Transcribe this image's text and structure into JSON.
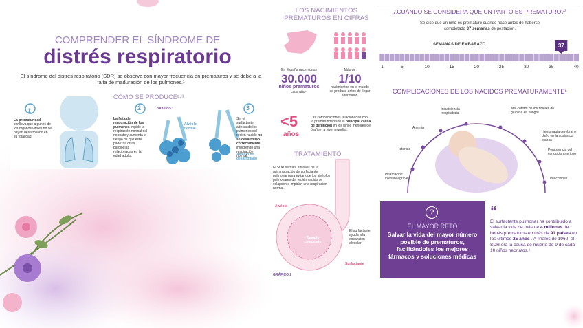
{
  "header": {
    "kicker": "COMPRENDER EL SÍNDROME DE",
    "title": "distrés respiratorio",
    "intro": "El síndrome del distrés respiratorio (SDR) se observa con mayor frecuencia en prematuros y se debe a la falta de maduración de los pulmones.¹"
  },
  "how": {
    "title": "CÓMO SE PRODUCE²·³",
    "graphic": "GRÁFICO 1",
    "steps": [
      {
        "number": "1",
        "parts": [
          "La prematuridad",
          "conlleva que algunos de los órganos vitales no se hayan desarrollado en su totalidad."
        ]
      },
      {
        "number": "2",
        "parts": [
          "La falta de maduración de los pulmones",
          "impide la respiración normal del neonato y aumenta el riesgo de que éste padezca otras patologías relacionadas en la edad adulta."
        ]
      },
      {
        "number": "3",
        "parts": [
          "Sin el surfactante adecuado los pulmones del recién nacido",
          "no se desarrollan correctamente,",
          "impidiendo una respiración normal."
        ]
      }
    ],
    "labels": [
      "Alvéolo normal",
      "Alvéolo no desarrollado"
    ]
  },
  "cifras": {
    "title": "LOS NACIMIENTOS PREMATUROS EN CIFRAS",
    "stat1": {
      "pre": "En España nacen unos",
      "value": "30.000",
      "unit": "niños prematuros",
      "post": "cada año⁴."
    },
    "stat2": {
      "pre": "Más de",
      "value": "1/10",
      "post": "nacimientos en el mundo se produce antes de llegar a término⁵."
    },
    "stat3": {
      "value": "<5",
      "unit": "años",
      "parts": [
        "Las complicaciones relacionadas con la prematuridad son la",
        "principal causa de defunción",
        "en los niños menores de 5 años⁵ a nivel mundial."
      ]
    }
  },
  "tratamiento": {
    "title": "TRATAMIENTO",
    "text": "El SDR se trata a través de la administración de surfactante pulmonar para evitar que los alvéolos pulmonares del recién nacido se colapsen e impidan una respiración normal.",
    "labels": [
      "Alvéolo",
      "Tamaño colapsado",
      "El surfactante ayuda a la expansión alveolar",
      "Surfactante"
    ],
    "graphic": "GRÁFICO 2"
  },
  "prematuro": {
    "title": "¿CUÁNDO SE CONSIDERA QUE UN PARTO ES PREMATURO?²",
    "parts": [
      "Se dice que un niño es prematuro cuando nace antes de haberse completado",
      "37 semanas",
      "de gestación."
    ],
    "weeks_title": "SEMANAS DE EMBARAZO",
    "ticks": [
      1,
      5,
      10,
      15,
      20,
      25,
      30,
      35,
      40
    ],
    "marker": 37
  },
  "complicaciones": {
    "title": "COMPLICACIONES DE LOS NACIDOS PREMATURAMENTE⁵",
    "items": [
      "Insuficiencia respiratoria",
      "Anemia",
      "Ictericia",
      "Inflamación intestinal grave",
      "Mal control de los niveles de glucosa en sangre",
      "Hemorragia cerebral o daño en la sustancia blanca",
      "Persistencia del conducto arterioso",
      "Infecciones"
    ]
  },
  "reto": {
    "icon": "?",
    "title": "EL MAYOR RETO",
    "text": "Salvar la vida del mayor número posible de prematuros, facilitándoles los mejores fármacos y soluciones médicas"
  },
  "quote": {
    "mark": "“",
    "parts": [
      "El surfactante pulmonar ha contribuido a salvar la vida de más de",
      "4 millones",
      "de bebés prematuros en más de",
      "91 países",
      "en los últimos",
      "25 años",
      ". A finales de 1960, el SDR era la causa de muerte de 9 de cada 10 niños neonatos.⁶"
    ]
  }
}
